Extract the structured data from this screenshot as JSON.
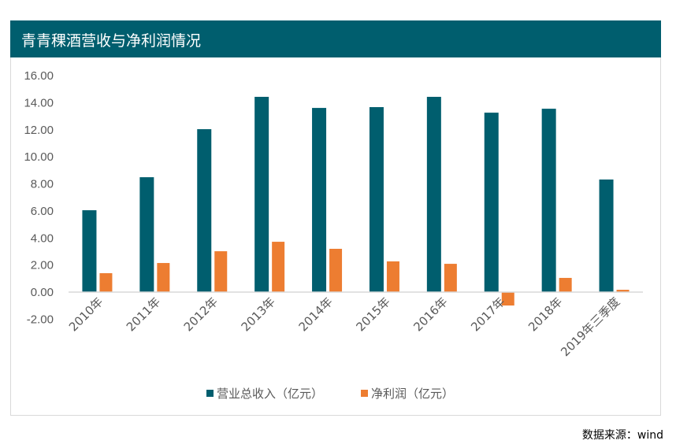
{
  "source": "数据来源：wind",
  "chart_data": {
    "type": "bar",
    "title": "青青稞酒营收与净利润情况",
    "categories": [
      "2010年",
      "2011年",
      "2012年",
      "2013年",
      "2014年",
      "2015年",
      "2016年",
      "2017年",
      "2018年",
      "2019年三季度"
    ],
    "series": [
      {
        "name": "营业总收入（亿元）",
        "color": "#005e6e",
        "values": [
          6.05,
          8.49,
          12.04,
          14.43,
          13.61,
          13.67,
          14.43,
          13.26,
          13.55,
          8.32
        ]
      },
      {
        "name": "净利润（亿元）",
        "color": "#ed7d31",
        "values": [
          1.4,
          2.15,
          3.02,
          3.72,
          3.2,
          2.27,
          2.09,
          -0.99,
          1.05,
          0.17
        ]
      }
    ],
    "ylim": [
      -2,
      16
    ],
    "yticks": [
      "-2.00",
      "0.00",
      "2.00",
      "4.00",
      "6.00",
      "8.00",
      "10.00",
      "12.00",
      "14.00",
      "16.00"
    ],
    "grid": false,
    "legend": "bottom"
  }
}
